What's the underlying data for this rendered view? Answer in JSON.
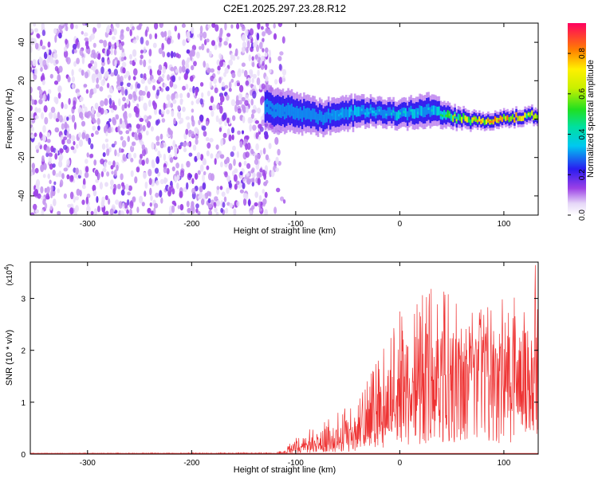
{
  "title": "C2E1.2025.297.23.28.R12",
  "chart_data": [
    {
      "type": "heatmap",
      "title": "C2E1.2025.297.23.28.R12",
      "xlabel": "Height of straight line (km)",
      "ylabel": "Frequency (Hz)",
      "xlim": [
        -355,
        133
      ],
      "ylim": [
        -50,
        50
      ],
      "xticks": [
        -300,
        -200,
        -100,
        0,
        100
      ],
      "yticks": [
        -40,
        -20,
        0,
        20,
        40
      ],
      "xtick_labels": [
        "-300",
        "-200",
        "-100",
        "0",
        "100"
      ],
      "ytick_labels": [
        "-40",
        "-20",
        "0",
        "20",
        "40"
      ],
      "noise_region": {
        "x_range": [
          -355,
          -120
        ],
        "y_range": [
          -50,
          50
        ]
      },
      "signal_band": {
        "x": [
          -130,
          -100,
          -75,
          -50,
          -25,
          0,
          25,
          50,
          75,
          100,
          125,
          133
        ],
        "center_hz": [
          6,
          3,
          1,
          3,
          4,
          2,
          5,
          1,
          -1,
          0,
          2,
          2
        ],
        "half_width_hz": [
          8,
          7,
          6,
          6,
          5,
          5,
          6,
          4,
          3,
          3,
          3,
          3
        ],
        "peak_amplitude": [
          0.25,
          0.3,
          0.3,
          0.35,
          0.35,
          0.4,
          0.35,
          0.6,
          0.8,
          0.85,
          0.7,
          0.6
        ]
      },
      "colorbar": {
        "label": "Normalized spectral amplitude",
        "range": [
          0,
          0.95
        ],
        "ticks": [
          0,
          0.2,
          0.4,
          0.6,
          0.8
        ],
        "tick_labels": [
          "0.0",
          "0.2",
          "0.4",
          "0.6",
          "0.8"
        ]
      }
    },
    {
      "type": "line",
      "xlabel": "Height of straight line (km)",
      "ylabel": "SNR (10 * v/v)",
      "scale_label": "(x10",
      "scale_exp": "4",
      "scale_close": ")",
      "xlim": [
        -355,
        133
      ],
      "ylim": [
        0,
        3.7
      ],
      "xticks": [
        -300,
        -200,
        -100,
        0,
        100
      ],
      "yticks": [
        0,
        1,
        2,
        3
      ],
      "xtick_labels": [
        "-300",
        "-200",
        "-100",
        "0",
        "100"
      ],
      "ytick_labels": [
        "0",
        "1",
        "2",
        "3"
      ],
      "color": "#ee3333",
      "envelope": {
        "x": [
          -355,
          -120,
          -110,
          -100,
          -80,
          -60,
          -40,
          -20,
          0,
          20,
          40,
          60,
          80,
          100,
          120,
          133
        ],
        "mean": [
          0.01,
          0.01,
          0.03,
          0.12,
          0.2,
          0.25,
          0.35,
          0.55,
          0.95,
          1.25,
          1.45,
          1.55,
          1.5,
          1.4,
          1.2,
          1.1
        ],
        "max": [
          0.02,
          0.03,
          0.08,
          0.38,
          0.55,
          0.8,
          1.05,
          1.9,
          2.8,
          3.2,
          3.2,
          2.9,
          2.8,
          3.0,
          3.5,
          3.7
        ]
      }
    }
  ]
}
